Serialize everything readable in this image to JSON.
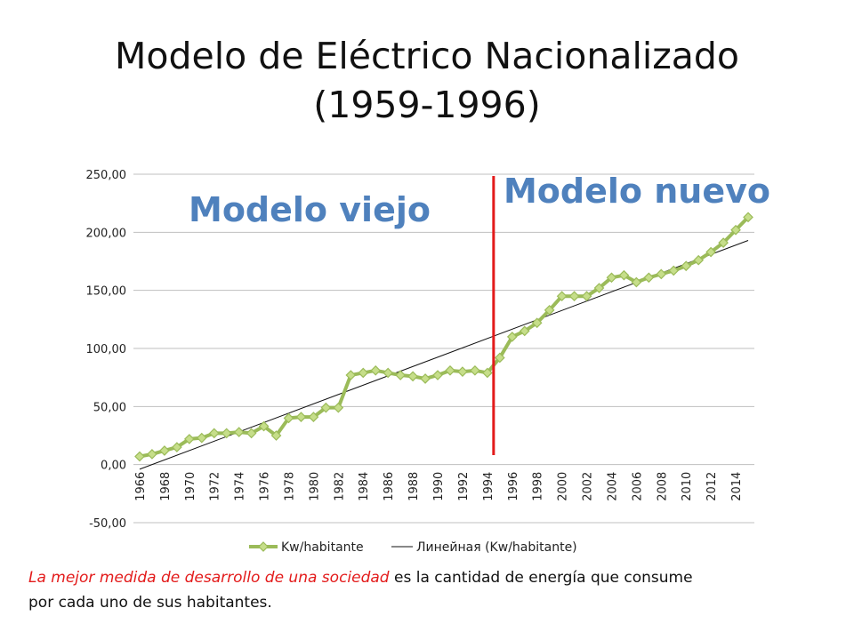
{
  "slide": {
    "title_line1": "Modelo de Eléctrico Nacionalizado",
    "title_line2": "(1959-1996)"
  },
  "footer": {
    "highlight": "La mejor medida de desarrollo de una sociedad",
    "rest": " es la cantidad de energía que consume por cada uno de sus habitantes."
  },
  "colors": {
    "series": "#9bbb59",
    "marker_fill": "#c6de8a",
    "trend": "#111111",
    "divider": "#e31b1b",
    "annotation_fill": "#4f81bd",
    "annotation_stroke": "#ffffff",
    "grid": "#bfbfbf"
  },
  "chart_data": {
    "type": "line",
    "x": [
      1966,
      1967,
      1968,
      1969,
      1970,
      1971,
      1972,
      1973,
      1974,
      1975,
      1976,
      1977,
      1978,
      1979,
      1980,
      1981,
      1982,
      1983,
      1984,
      1985,
      1986,
      1987,
      1988,
      1989,
      1990,
      1991,
      1992,
      1993,
      1994,
      1995,
      1996,
      1997,
      1998,
      1999,
      2000,
      2001,
      2002,
      2003,
      2004,
      2005,
      2006,
      2007,
      2008,
      2009,
      2010,
      2011,
      2012,
      2013,
      2014,
      2015
    ],
    "series": [
      {
        "name": "Kw/habitante",
        "values": [
          7,
          9,
          12,
          15,
          22,
          23,
          27,
          27,
          28,
          27,
          33,
          25,
          40,
          41,
          41,
          49,
          49,
          77,
          79,
          81,
          79,
          77,
          76,
          74,
          77,
          81,
          80,
          81,
          79,
          92,
          110,
          115,
          122,
          133,
          145,
          145,
          145,
          152,
          161,
          163,
          157,
          161,
          164,
          167,
          171,
          176,
          183,
          191,
          202,
          213
        ]
      },
      {
        "name": "Линейная (Kw/habitante)",
        "trendline": true,
        "values_at_ends": [
          -4,
          193
        ]
      }
    ],
    "x_tick_labels": [
      "1966",
      "1968",
      "1970",
      "1972",
      "1974",
      "1976",
      "1978",
      "1980",
      "1982",
      "1984",
      "1986",
      "1988",
      "1990",
      "1992",
      "1994",
      "1996",
      "1998",
      "2000",
      "2002",
      "2004",
      "2006",
      "2008",
      "2010",
      "2012",
      "2014"
    ],
    "y_tick_labels": [
      "250,00",
      "200,00",
      "150,00",
      "100,00",
      "50,00",
      "0,00",
      "-50,00"
    ],
    "y_ticks": [
      250,
      200,
      150,
      100,
      50,
      0,
      -50
    ],
    "ylim": [
      -50,
      250
    ],
    "divider_x": 1994.5,
    "annotations": [
      "Modelo viejo",
      "Modelo nuevo"
    ],
    "legend": [
      "Kw/habitante",
      "Линейная (Kw/habitante)"
    ],
    "legend_position": "bottom",
    "grid": true
  }
}
